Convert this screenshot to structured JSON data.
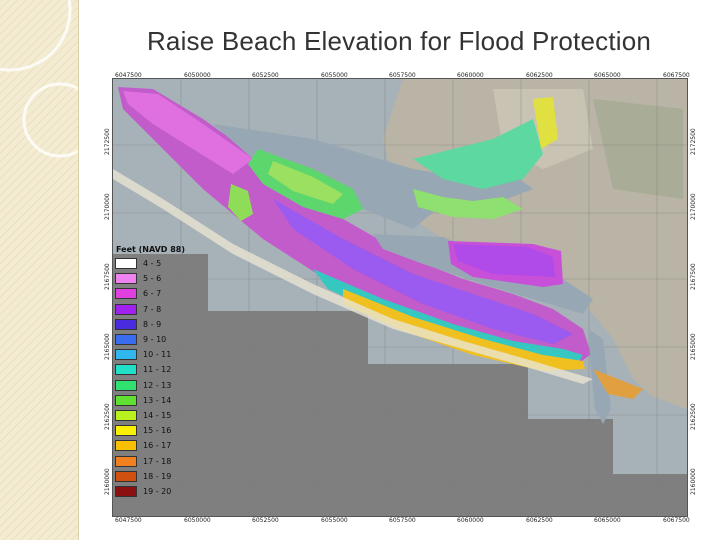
{
  "slide": {
    "title": "Raise Beach Elevation for Flood Protection"
  },
  "map": {
    "legend": {
      "title": "Feet (NAVD 88)",
      "items": [
        {
          "label": "4 - 5",
          "color": "#ffffff"
        },
        {
          "label": "5 - 6",
          "color": "#ee82ee"
        },
        {
          "label": "6 - 7",
          "color": "#e040e0"
        },
        {
          "label": "7 - 8",
          "color": "#a020f0"
        },
        {
          "label": "8 - 9",
          "color": "#4b2be0"
        },
        {
          "label": "9 - 10",
          "color": "#3a6cf0"
        },
        {
          "label": "10 - 11",
          "color": "#30b8ee"
        },
        {
          "label": "11 - 12",
          "color": "#20e0c8"
        },
        {
          "label": "12 - 13",
          "color": "#30e070"
        },
        {
          "label": "13 - 14",
          "color": "#60e030"
        },
        {
          "label": "14 - 15",
          "color": "#b8f020"
        },
        {
          "label": "15 - 16",
          "color": "#f8f000"
        },
        {
          "label": "16 - 17",
          "color": "#f8c000"
        },
        {
          "label": "17 - 18",
          "color": "#f08020"
        },
        {
          "label": "18 - 19",
          "color": "#d05010"
        },
        {
          "label": "19 - 20",
          "color": "#8b1010"
        }
      ]
    },
    "x_ticks": [
      "6047500",
      "6050000",
      "6052500",
      "6055000",
      "6057500",
      "6060000",
      "6062500",
      "6065000",
      "6067500"
    ],
    "y_ticks_left": [
      "2172500",
      "2170000",
      "2167500",
      "2165000",
      "2162500",
      "2160000"
    ],
    "y_ticks_right": [
      "2172500",
      "2170000",
      "2167500",
      "2165000",
      "2162500",
      "2160000"
    ]
  }
}
